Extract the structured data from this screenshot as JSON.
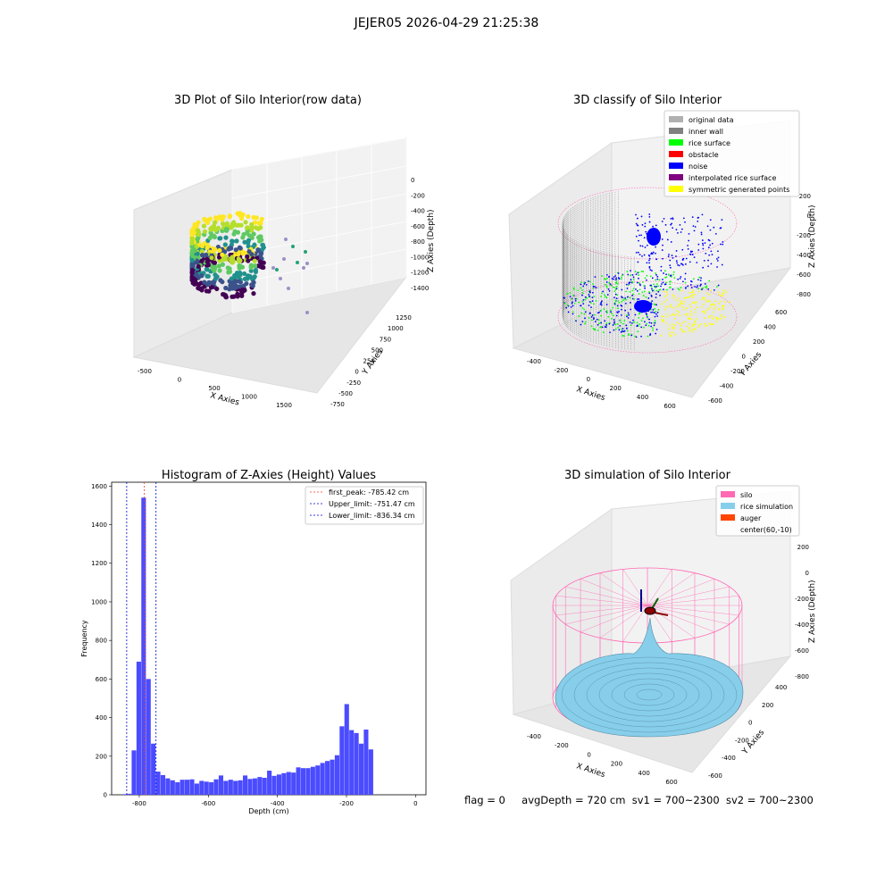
{
  "suptitle": "JEJER05 2026-04-29 21:25:38",
  "status": {
    "flag": "flag = 0",
    "avg_depth": "avgDepth = 720 cm",
    "sv1": "sv1 = 700~2300",
    "sv2": "sv2 = 700~2300"
  },
  "colors": {
    "histogram": "#4b4bff",
    "first_peak": "#ff3b30",
    "limit": "#0000cc",
    "silo": "#ff69b4",
    "rice_simulation": "#87ceeb",
    "auger": "#ff4500",
    "original_data": "#b0b0b0",
    "inner_wall": "#808080",
    "rice_surface": "#00ff00",
    "obstacle": "#ff0000",
    "noise": "#0000ff",
    "interpolated": "#800080",
    "symmetric": "#ffff00"
  },
  "chart_data": [
    {
      "type": "scatter",
      "title": "3D Plot of Silo Interior(row data)",
      "xlabel": "X Axies",
      "ylabel": "Y Axies",
      "zlabel": "Z Axies (Depth)",
      "x_ticks": [
        "-500",
        "0",
        "500",
        "1000",
        "1500"
      ],
      "y_ticks": [
        "-750",
        "-500",
        "-250",
        "0",
        "250",
        "500",
        "750",
        "1000",
        "1250"
      ],
      "z_ticks": [
        "-1400",
        "-1200",
        "-1000",
        "-800",
        "-600",
        "-400",
        "-200",
        "0"
      ],
      "colormap": "viridis"
    },
    {
      "type": "scatter",
      "title": "3D classify of Silo Interior",
      "xlabel": "X Axies",
      "ylabel": "Y Axies",
      "zlabel": "Z Axies (Depth)",
      "x_ticks": [
        "-400",
        "-200",
        "0",
        "200",
        "400",
        "600"
      ],
      "y_ticks": [
        "-600",
        "-400",
        "-200",
        "0",
        "200",
        "400",
        "600"
      ],
      "z_ticks": [
        "-800",
        "-600",
        "-400",
        "-200",
        "0",
        "200"
      ],
      "legend": [
        {
          "label": "original data",
          "color": "#b0b0b0"
        },
        {
          "label": "inner wall",
          "color": "#808080"
        },
        {
          "label": "rice surface",
          "color": "#00ff00"
        },
        {
          "label": "obstacle",
          "color": "#ff0000"
        },
        {
          "label": "noise",
          "color": "#0000ff"
        },
        {
          "label": "interpolated rice surface",
          "color": "#800080"
        },
        {
          "label": "symmetric generated points",
          "color": "#ffff00"
        }
      ],
      "legend_position": "top-right"
    },
    {
      "type": "bar",
      "title": "Histogram of Z-Axies (Height) Values",
      "xlabel": "Depth (cm)",
      "ylabel": "Frequency",
      "xlim": [
        -880,
        30
      ],
      "ylim": [
        0,
        1620
      ],
      "x_ticks": [
        -800,
        -600,
        -400,
        -200,
        0
      ],
      "y_ticks": [
        0,
        200,
        400,
        600,
        800,
        1000,
        1200,
        1400,
        1600
      ],
      "bin_width": 14,
      "bins": [
        [
          -850,
          3
        ],
        [
          -836,
          5
        ],
        [
          -822,
          230
        ],
        [
          -808,
          690
        ],
        [
          -794,
          1540
        ],
        [
          -780,
          600
        ],
        [
          -766,
          265
        ],
        [
          -752,
          120
        ],
        [
          -738,
          102
        ],
        [
          -724,
          85
        ],
        [
          -710,
          75
        ],
        [
          -696,
          65
        ],
        [
          -682,
          78
        ],
        [
          -668,
          78
        ],
        [
          -654,
          80
        ],
        [
          -640,
          58
        ],
        [
          -626,
          72
        ],
        [
          -612,
          68
        ],
        [
          -598,
          65
        ],
        [
          -584,
          80
        ],
        [
          -570,
          100
        ],
        [
          -556,
          72
        ],
        [
          -542,
          78
        ],
        [
          -528,
          72
        ],
        [
          -514,
          75
        ],
        [
          -500,
          100
        ],
        [
          -486,
          82
        ],
        [
          -472,
          85
        ],
        [
          -458,
          92
        ],
        [
          -444,
          88
        ],
        [
          -430,
          125
        ],
        [
          -416,
          98
        ],
        [
          -402,
          105
        ],
        [
          -388,
          112
        ],
        [
          -374,
          118
        ],
        [
          -360,
          115
        ],
        [
          -346,
          142
        ],
        [
          -332,
          138
        ],
        [
          -318,
          138
        ],
        [
          -304,
          145
        ],
        [
          -290,
          152
        ],
        [
          -276,
          165
        ],
        [
          -262,
          175
        ],
        [
          -248,
          182
        ],
        [
          -234,
          205
        ],
        [
          -220,
          355
        ],
        [
          -206,
          470
        ],
        [
          -192,
          335
        ],
        [
          -178,
          320
        ],
        [
          -164,
          265
        ],
        [
          -150,
          338
        ],
        [
          -136,
          235
        ]
      ],
      "vlines": [
        {
          "label": "first_peak: -785.42 cm",
          "x": -785.42,
          "color": "#ff3b30"
        },
        {
          "label": "Upper_limit: -751.47 cm",
          "x": -751.47,
          "color": "#0000cc"
        },
        {
          "label": "Lower_limit: -836.34 cm",
          "x": -836.34,
          "color": "#0000cc"
        }
      ],
      "legend_position": "top-right"
    },
    {
      "type": "area",
      "title": "3D simulation of Silo Interior",
      "xlabel": "X Axies",
      "ylabel": "Y Axies",
      "zlabel": "Z Axies (Depth)",
      "x_ticks": [
        "-400",
        "-200",
        "0",
        "200",
        "400",
        "600"
      ],
      "y_ticks": [
        "-600",
        "-400",
        "-200",
        "0",
        "200",
        "400"
      ],
      "z_ticks": [
        "-800",
        "-600",
        "-400",
        "-200",
        "0",
        "200"
      ],
      "legend": [
        {
          "label": "silo",
          "color": "#ff69b4"
        },
        {
          "label": "rice simulation",
          "color": "#87ceeb"
        },
        {
          "label": "auger",
          "color": "#ff4500"
        },
        {
          "label": "center(60,-10)",
          "color": ""
        }
      ],
      "legend_position": "top-right"
    }
  ]
}
